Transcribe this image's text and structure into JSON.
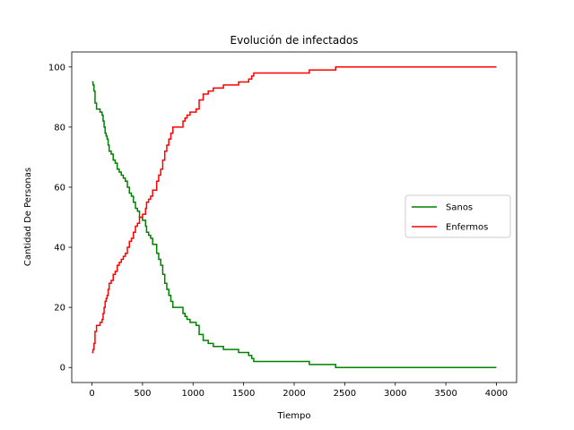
{
  "chart_data": {
    "type": "line",
    "title": "Evolución de infectados",
    "xlabel": "Tiempo",
    "ylabel": "Cantidad De Personas",
    "xlim": [
      -200,
      4200
    ],
    "ylim": [
      -5,
      105
    ],
    "xticks": [
      0,
      500,
      1000,
      1500,
      2000,
      2500,
      3000,
      3500,
      4000
    ],
    "yticks": [
      0,
      20,
      40,
      60,
      80,
      100
    ],
    "grid": false,
    "legend_position": "right",
    "series": [
      {
        "name": "Sanos",
        "color": "#008000",
        "x": [
          0,
          10,
          20,
          30,
          45,
          60,
          80,
          100,
          110,
          120,
          130,
          140,
          150,
          160,
          170,
          190,
          210,
          230,
          250,
          270,
          290,
          310,
          330,
          350,
          370,
          390,
          410,
          430,
          450,
          470,
          490,
          500,
          530,
          540,
          560,
          580,
          600,
          620,
          640,
          660,
          680,
          700,
          720,
          740,
          760,
          780,
          800,
          850,
          900,
          920,
          940,
          970,
          1000,
          1030,
          1060,
          1100,
          1150,
          1200,
          1250,
          1300,
          1350,
          1400,
          1450,
          1500,
          1550,
          1580,
          1600,
          1650,
          2000,
          2150,
          2400,
          2410,
          4000
        ],
        "values": [
          95,
          94,
          92,
          88,
          86,
          86,
          85,
          84,
          82,
          80,
          78,
          77,
          76,
          74,
          72,
          71,
          69,
          68,
          66,
          65,
          64,
          63,
          62,
          60,
          58,
          57,
          55,
          53,
          52,
          50,
          50,
          49,
          47,
          45,
          44,
          43,
          41,
          41,
          38,
          36,
          34,
          31,
          28,
          26,
          24,
          22,
          20,
          20,
          18,
          17,
          16,
          15,
          15,
          14,
          11,
          9,
          8,
          7,
          7,
          6,
          6,
          6,
          5,
          5,
          4,
          3,
          2,
          2,
          2,
          1,
          1,
          0,
          0
        ]
      },
      {
        "name": "Enfermos",
        "color": "#ff0000",
        "x": [
          0,
          10,
          20,
          30,
          45,
          60,
          80,
          100,
          110,
          120,
          130,
          140,
          150,
          160,
          170,
          190,
          210,
          230,
          250,
          270,
          290,
          310,
          330,
          350,
          370,
          390,
          410,
          430,
          450,
          470,
          490,
          500,
          530,
          540,
          560,
          580,
          600,
          620,
          640,
          660,
          680,
          700,
          720,
          740,
          760,
          780,
          800,
          850,
          900,
          920,
          940,
          970,
          1000,
          1030,
          1060,
          1100,
          1150,
          1200,
          1250,
          1300,
          1350,
          1400,
          1450,
          1500,
          1550,
          1580,
          1600,
          1650,
          2000,
          2150,
          2400,
          2410,
          4000
        ],
        "values": [
          5,
          6,
          8,
          12,
          14,
          14,
          15,
          16,
          18,
          20,
          22,
          23,
          24,
          26,
          28,
          29,
          31,
          32,
          34,
          35,
          36,
          37,
          38,
          40,
          42,
          43,
          45,
          47,
          48,
          50,
          50,
          51,
          53,
          55,
          56,
          57,
          59,
          59,
          62,
          64,
          66,
          69,
          72,
          74,
          76,
          78,
          80,
          80,
          82,
          83,
          84,
          85,
          85,
          86,
          89,
          91,
          92,
          93,
          93,
          94,
          94,
          94,
          95,
          95,
          96,
          97,
          98,
          98,
          98,
          99,
          99,
          100,
          100
        ]
      }
    ]
  }
}
